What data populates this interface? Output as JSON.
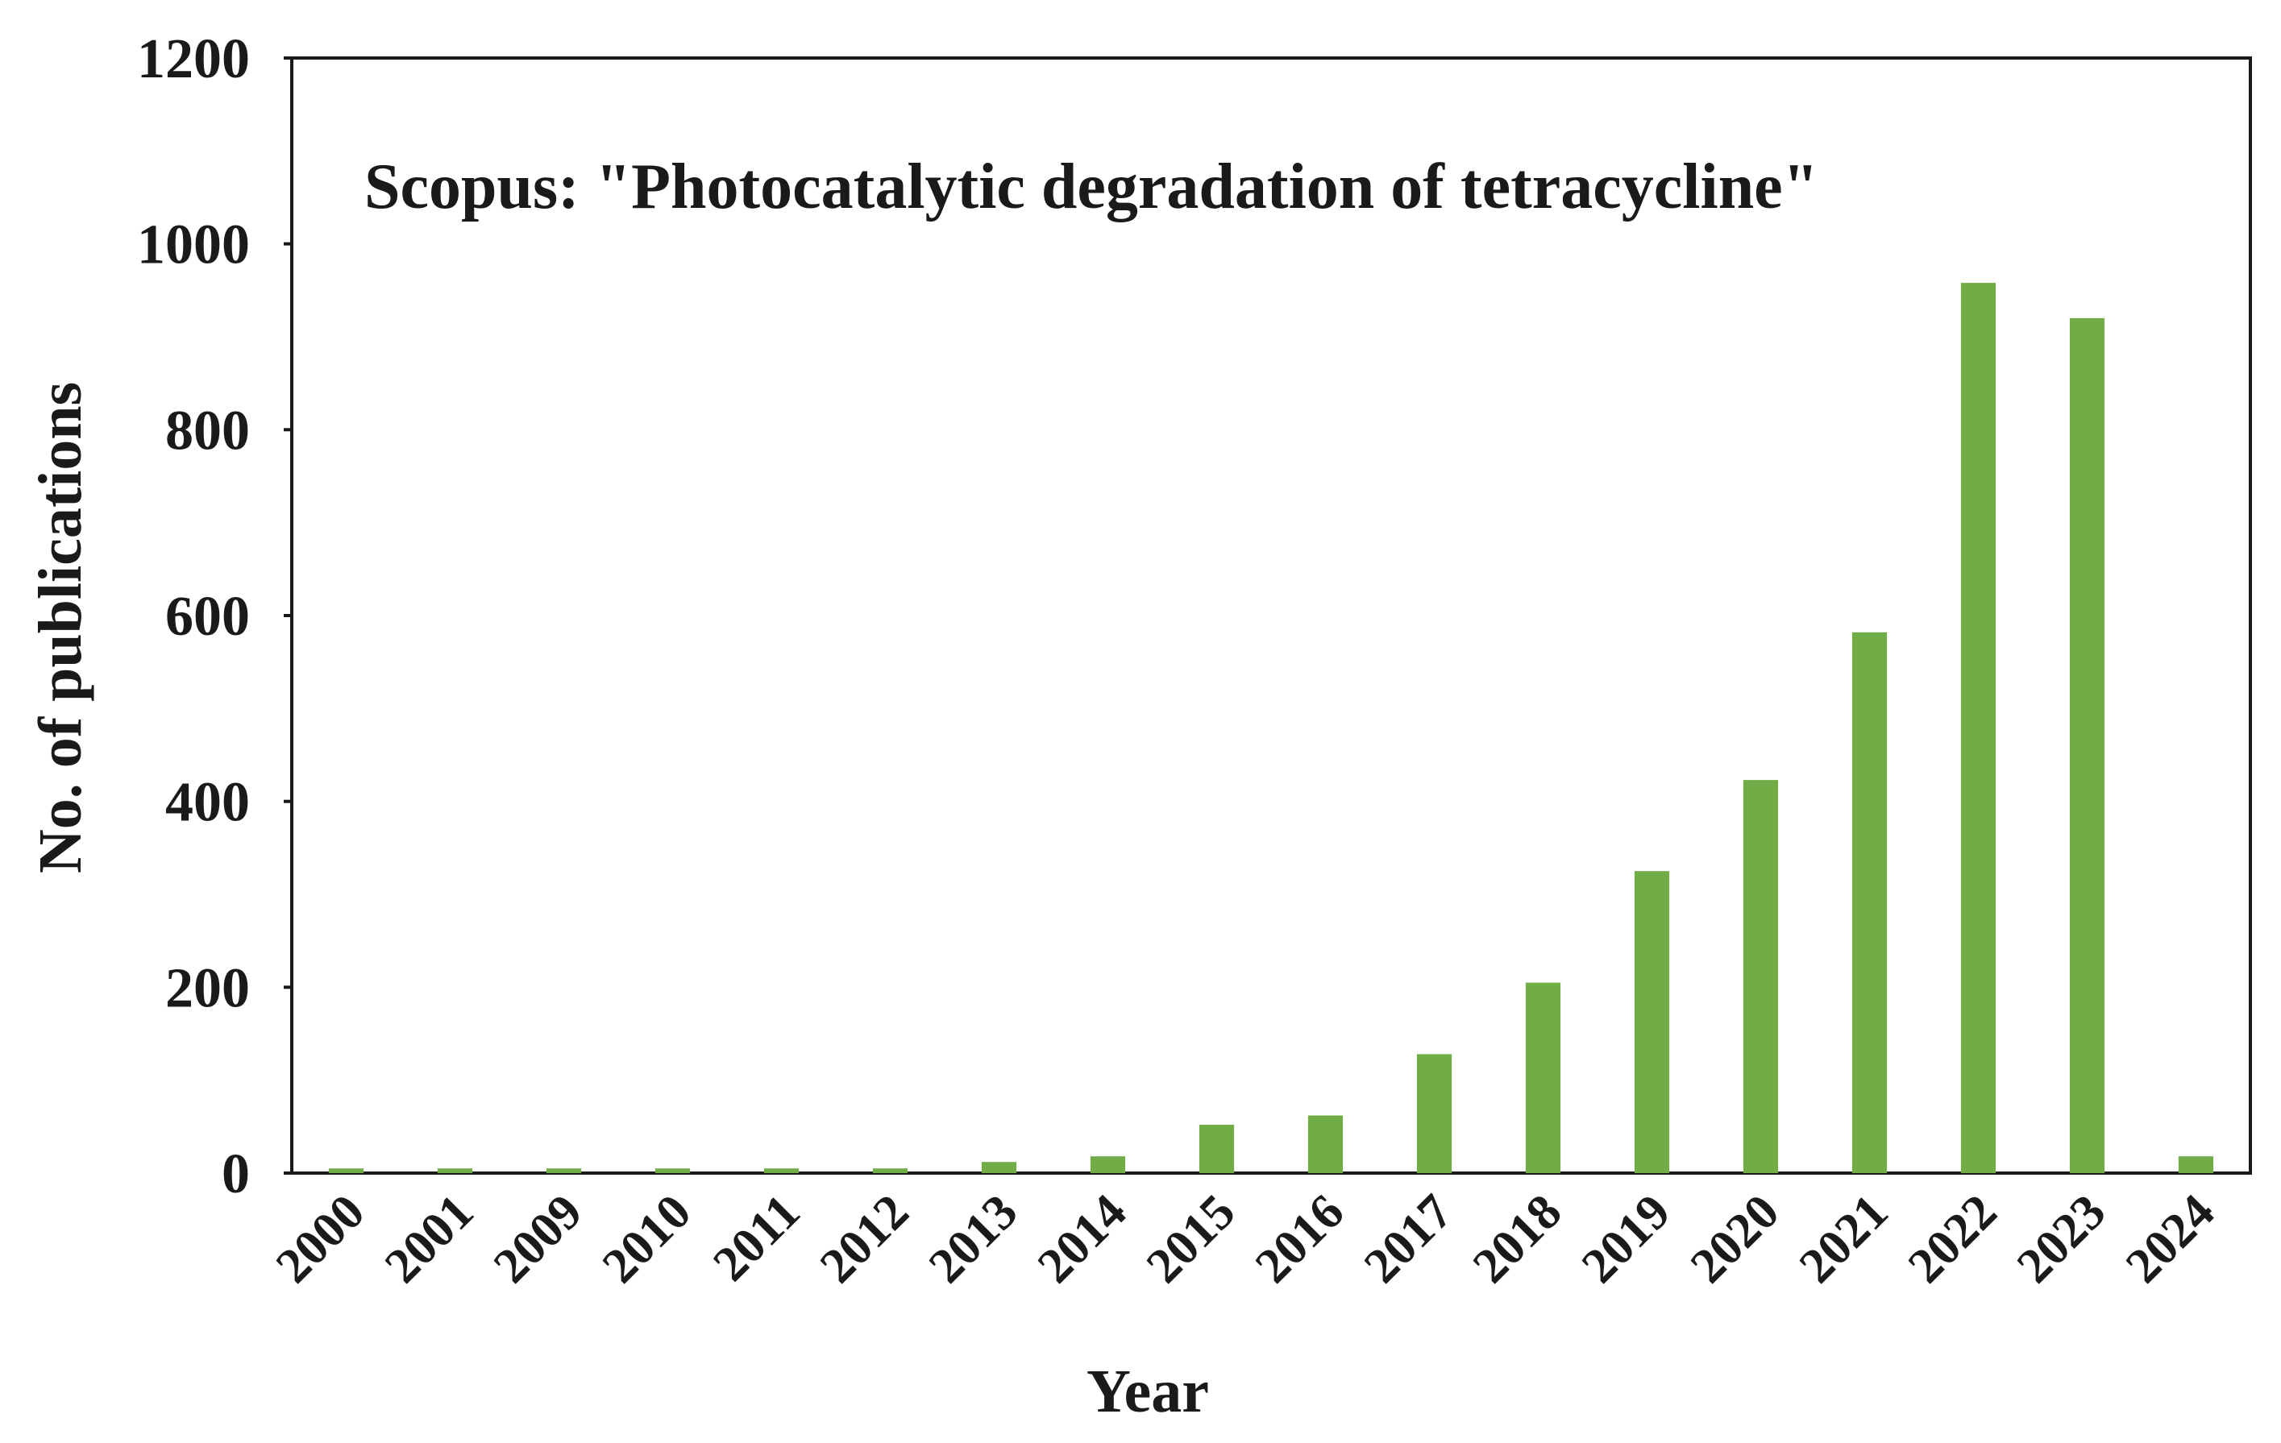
{
  "chart_data": {
    "type": "bar",
    "title": "Scopus: \"Photocatalytic degradation of tetracycline\"",
    "xlabel": "Year",
    "ylabel": "No. of publications",
    "categories": [
      "2000",
      "2001",
      "2009",
      "2010",
      "2011",
      "2012",
      "2013",
      "2014",
      "2015",
      "2016",
      "2017",
      "2018",
      "2019",
      "2020",
      "2021",
      "2022",
      "2023",
      "2024"
    ],
    "values": [
      5,
      5,
      5,
      5,
      5,
      5,
      12,
      18,
      52,
      62,
      128,
      205,
      325,
      423,
      582,
      958,
      920,
      18
    ],
    "ylim": [
      0,
      1200
    ],
    "yticks": [
      0,
      200,
      400,
      600,
      800,
      1000,
      1200
    ],
    "grid": false,
    "legend": "none",
    "bar_color": "#70ad47"
  }
}
